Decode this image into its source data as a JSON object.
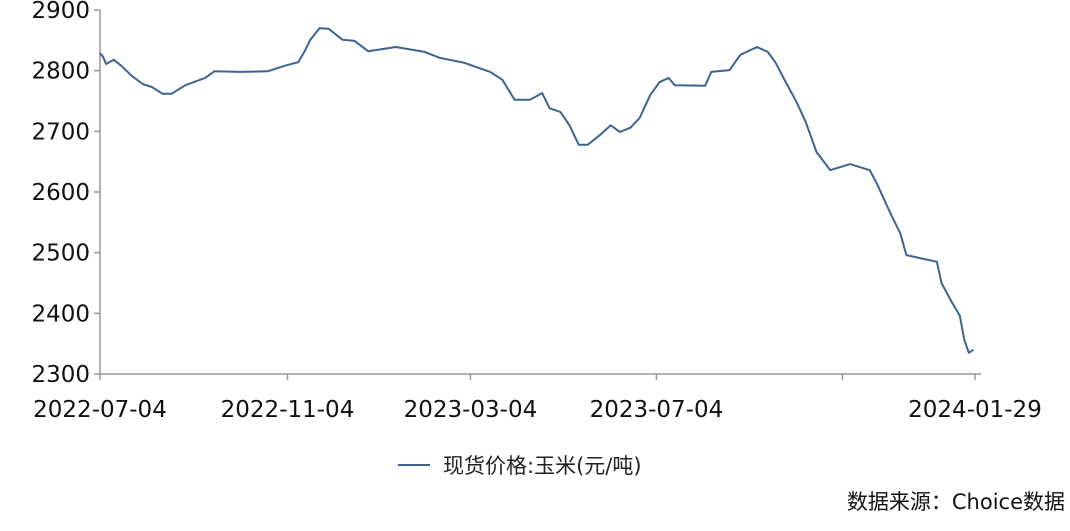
{
  "chart_data": {
    "type": "line",
    "title": "",
    "xlabel": "",
    "ylabel": "",
    "ylim": [
      2300,
      2900
    ],
    "yticks": [
      2300,
      2400,
      2500,
      2600,
      2700,
      2800,
      2900
    ],
    "xlim": [
      "2022-07-04",
      "2024-01-29"
    ],
    "xtick_dates": [
      "2022-07-04",
      "2022-11-04",
      "2023-03-04",
      "2023-07-04",
      "2023-11-03",
      "2024-01-29"
    ],
    "xtick_labels": [
      "2022-07-04",
      "2022-11-04",
      "2023-03-04",
      "2023-07-04",
      "",
      "2024-01-29"
    ],
    "grid": false,
    "legend_position": "bottom",
    "series": [
      {
        "name": "现货价格:玉米(元/吨)",
        "color": "#3d6391",
        "points": [
          [
            "2022-07-04",
            2829
          ],
          [
            "2022-07-06",
            2823
          ],
          [
            "2022-07-08",
            2811
          ],
          [
            "2022-07-13",
            2818
          ],
          [
            "2022-07-18",
            2808
          ],
          [
            "2022-07-25",
            2791
          ],
          [
            "2022-08-01",
            2778
          ],
          [
            "2022-08-07",
            2773
          ],
          [
            "2022-08-14",
            2762
          ],
          [
            "2022-08-20",
            2762
          ],
          [
            "2022-08-29",
            2776
          ],
          [
            "2022-09-11",
            2788
          ],
          [
            "2022-09-17",
            2799
          ],
          [
            "2022-10-04",
            2798
          ],
          [
            "2022-10-22",
            2799
          ],
          [
            "2022-11-02",
            2808
          ],
          [
            "2022-11-11",
            2814
          ],
          [
            "2022-11-15",
            2831
          ],
          [
            "2022-11-19",
            2851
          ],
          [
            "2022-11-25",
            2870
          ],
          [
            "2022-12-01",
            2869
          ],
          [
            "2022-12-10",
            2851
          ],
          [
            "2022-12-18",
            2849
          ],
          [
            "2022-12-27",
            2832
          ],
          [
            "2023-01-14",
            2839
          ],
          [
            "2023-02-02",
            2831
          ],
          [
            "2023-02-12",
            2821
          ],
          [
            "2023-02-28",
            2813
          ],
          [
            "2023-03-17",
            2798
          ],
          [
            "2023-03-25",
            2785
          ],
          [
            "2023-04-02",
            2752
          ],
          [
            "2023-04-12",
            2752
          ],
          [
            "2023-04-20",
            2763
          ],
          [
            "2023-04-25",
            2738
          ],
          [
            "2023-05-02",
            2732
          ],
          [
            "2023-05-08",
            2710
          ],
          [
            "2023-05-14",
            2678
          ],
          [
            "2023-05-20",
            2678
          ],
          [
            "2023-05-28",
            2694
          ],
          [
            "2023-06-04",
            2710
          ],
          [
            "2023-06-10",
            2699
          ],
          [
            "2023-06-17",
            2706
          ],
          [
            "2023-06-23",
            2722
          ],
          [
            "2023-06-30",
            2760
          ],
          [
            "2023-07-06",
            2781
          ],
          [
            "2023-07-12",
            2788
          ],
          [
            "2023-07-16",
            2776
          ],
          [
            "2023-08-05",
            2775
          ],
          [
            "2023-08-09",
            2798
          ],
          [
            "2023-08-21",
            2801
          ],
          [
            "2023-08-28",
            2826
          ],
          [
            "2023-09-08",
            2839
          ],
          [
            "2023-09-15",
            2831
          ],
          [
            "2023-09-20",
            2814
          ],
          [
            "2023-09-26",
            2785
          ],
          [
            "2023-10-04",
            2748
          ],
          [
            "2023-10-10",
            2715
          ],
          [
            "2023-10-17",
            2666
          ],
          [
            "2023-10-26",
            2636
          ],
          [
            "2023-11-08",
            2646
          ],
          [
            "2023-11-21",
            2636
          ],
          [
            "2023-11-26",
            2612
          ],
          [
            "2023-12-01",
            2584
          ],
          [
            "2023-12-06",
            2557
          ],
          [
            "2023-12-11",
            2532
          ],
          [
            "2023-12-15",
            2496
          ],
          [
            "2023-12-24",
            2491
          ],
          [
            "2024-01-04",
            2485
          ],
          [
            "2024-01-07",
            2450
          ],
          [
            "2024-01-13",
            2422
          ],
          [
            "2024-01-19",
            2396
          ],
          [
            "2024-01-22",
            2356
          ],
          [
            "2024-01-25",
            2335
          ],
          [
            "2024-01-28",
            2340
          ]
        ]
      }
    ]
  },
  "legend": {
    "label": "现货价格:玉米(元/吨)"
  },
  "source": "数据来源：Choice数据"
}
